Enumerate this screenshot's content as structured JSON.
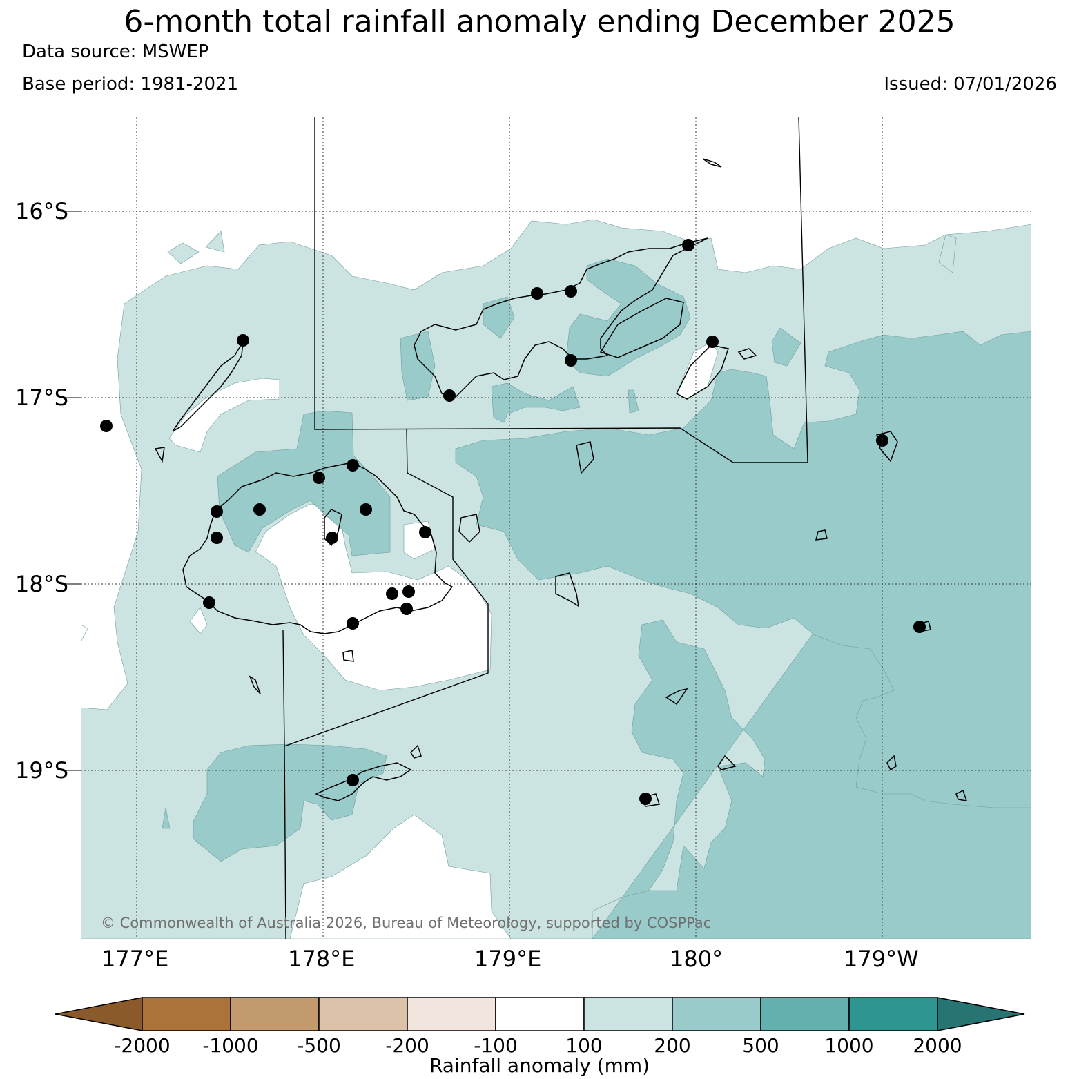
{
  "header": {
    "title": "6-month total rainfall anomaly ending December 2025",
    "data_source": "Data source: MSWEP",
    "base_period": "Base period: 1981-2021",
    "issued": "Issued: 07/01/2026"
  },
  "map": {
    "lat_labels": [
      "16°S",
      "17°S",
      "18°S",
      "19°S"
    ],
    "lon_labels": [
      "177°E",
      "178°E",
      "179°E",
      "180°",
      "179°W"
    ],
    "copyright": "© Commonwealth of Australia 2026, Bureau of Meteorology, supported by COSPPac",
    "colors": {
      "anomaly_100_200": "#cbe4e2",
      "anomaly_200_500": "#9acbcb",
      "anomaly_neutral": "#ffffff",
      "coastline": "#000000",
      "station": "#000000"
    }
  },
  "colorbar": {
    "title": "Rainfall anomaly (mm)",
    "tick_labels": [
      "-2000",
      "-1000",
      "-500",
      "-200",
      "-100",
      "100",
      "200",
      "500",
      "1000",
      "2000"
    ],
    "colors": [
      "#8b5a2b",
      "#ab7339",
      "#c39a6e",
      "#dbc2a9",
      "#f1e5dd",
      "#ffffff",
      "#cbe4e2",
      "#9acbcb",
      "#62b0b0",
      "#2f9590",
      "#277472"
    ]
  }
}
